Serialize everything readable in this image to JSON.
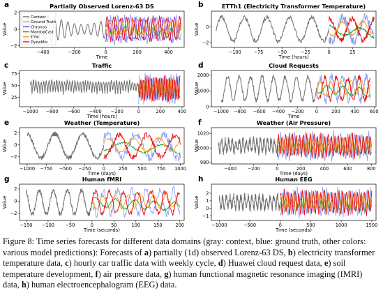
{
  "chart_data": [
    {
      "id": "a",
      "type": "line",
      "title": "Partially Observed Lorenz-63 DS",
      "xlabel": "Time",
      "ylabel": "Value",
      "xlim": [
        -550,
        500
      ],
      "ylim": [
        -2.2,
        2.2
      ],
      "xticks": [
        -400,
        -200,
        0,
        200,
        400
      ],
      "yticks": [
        -2,
        0,
        2
      ],
      "legend": [
        "Context",
        "Ground Truth",
        "Chronos",
        "MambaCast",
        "TTM",
        "DynaMix"
      ],
      "legend_position": "top-left",
      "context": {
        "start": -540,
        "end": 0,
        "amplitude": 1.4,
        "period": 42
      },
      "forecast_end": 480
    },
    {
      "id": "b",
      "type": "line",
      "title": "ETTh1 (Electricity Transformer Temperature)",
      "xlabel": "Time (hours)",
      "ylabel": "Value",
      "xlim": [
        -125,
        50
      ],
      "ylim": [
        -2.6,
        2.0
      ],
      "xticks": [
        -100,
        -75,
        -50,
        -25,
        0,
        25
      ],
      "yticks": [
        -2,
        0
      ],
      "context": {
        "start": -120,
        "end": 0,
        "period": 24
      },
      "forecast_end": 48
    },
    {
      "id": "c",
      "type": "line",
      "title": "Traffic",
      "xlabel": "Time (hours)",
      "ylabel": "Value",
      "xlim": [
        -1100,
        420
      ],
      "ylim": [
        5,
        82
      ],
      "xticks": [
        -1000,
        -800,
        -600,
        -400,
        -200,
        0,
        200,
        400
      ],
      "yticks": [
        25,
        50,
        75
      ],
      "context": {
        "start": -1000,
        "end": 0,
        "period": 24
      },
      "forecast_end": 380
    },
    {
      "id": "d",
      "type": "line",
      "title": "Cloud Requests",
      "xlabel": "Time",
      "ylabel": "Value",
      "xlim": [
        -1100,
        620
      ],
      "ylim": [
        0,
        2300
      ],
      "xticks": [
        -1000,
        -800,
        -600,
        -400,
        -200,
        0,
        200,
        400,
        600
      ],
      "yticks": [
        0,
        1000,
        2000
      ],
      "context": {
        "start": -1000,
        "end": 0,
        "period": 120
      },
      "forecast_end": 560
    },
    {
      "id": "e",
      "type": "line",
      "title": "Weather (Temperature)",
      "xlabel": "Time (days)",
      "ylabel": "Value",
      "xlim": [
        -1100,
        1050
      ],
      "ylim": [
        -3.2,
        2.9
      ],
      "xticks": [
        -1000,
        -750,
        -500,
        -250,
        0,
        250,
        500,
        750,
        1000
      ],
      "yticks": [
        -2,
        0,
        2
      ],
      "context": {
        "start": -1000,
        "end": 0,
        "period": 365
      },
      "forecast_end": 1000
    },
    {
      "id": "f",
      "type": "line",
      "title": "Weather (Air Pressure)",
      "xlabel": "Time (days)",
      "ylabel": "Value",
      "xlim": [
        -560,
        840
      ],
      "ylim": [
        978,
        1028
      ],
      "xticks": [
        -400,
        -200,
        0,
        200,
        400,
        600,
        800
      ],
      "yticks": [
        980,
        1000,
        1020
      ],
      "context": {
        "start": -500,
        "end": 0,
        "period": 30
      },
      "forecast_end": 800
    },
    {
      "id": "g",
      "type": "line",
      "title": "Human fMRI",
      "xlabel": "Time (seconds)",
      "ylabel": "Value",
      "xlim": [
        -165,
        210
      ],
      "ylim": [
        -3.2,
        2.8
      ],
      "xticks": [
        -150,
        -100,
        -50,
        0,
        50,
        100,
        150,
        200
      ],
      "yticks": [
        -2,
        0,
        2
      ],
      "context": {
        "start": -150,
        "end": 0,
        "period": 32
      },
      "forecast_end": 200
    },
    {
      "id": "h",
      "type": "line",
      "title": "Human EEG",
      "xlabel": "Time (seconds)",
      "ylabel": "Value",
      "xlim": [
        -1130,
        1570
      ],
      "ylim": [
        -1.6,
        3.2
      ],
      "xticks": [
        -1000,
        -500,
        0,
        500,
        1000,
        1500
      ],
      "yticks": [
        -1,
        0,
        1,
        2
      ],
      "context": {
        "start": -1000,
        "end": 0,
        "period": 60
      },
      "forecast_end": 1500
    }
  ],
  "colors": {
    "context": "#6e6e6e",
    "ground_truth": "#8da0f0",
    "chronos": "#8a2be2",
    "mambacast": "#2ca02c",
    "ttm": "#ff9f1c",
    "dynamix": "#e8141c"
  },
  "caption": {
    "p1": "Figure 8: Time series forecasts for different data domains (gray: context, blue: ground truth, other colors: various model predictions): Forecasts of ",
    "a": "a",
    "p2": ") partially (1d) observed Lorenz-63 DS, ",
    "b": "b",
    "p3": ") electricity transformer temperature data, ",
    "c": "c",
    "p4": ") hourly car traffic data with weekly cycle, ",
    "d": "d",
    "p5": ") Huawei cloud request data, ",
    "e": "e",
    "p6": ") soil temperature development, ",
    "f": "f",
    "p7": ") air pressure data, ",
    "g": "g",
    "p8": ") human functional magnetic resonance imaging (fMRI) data, ",
    "h": "h",
    "p9": ") human electroencephalogram (EEG) data."
  }
}
